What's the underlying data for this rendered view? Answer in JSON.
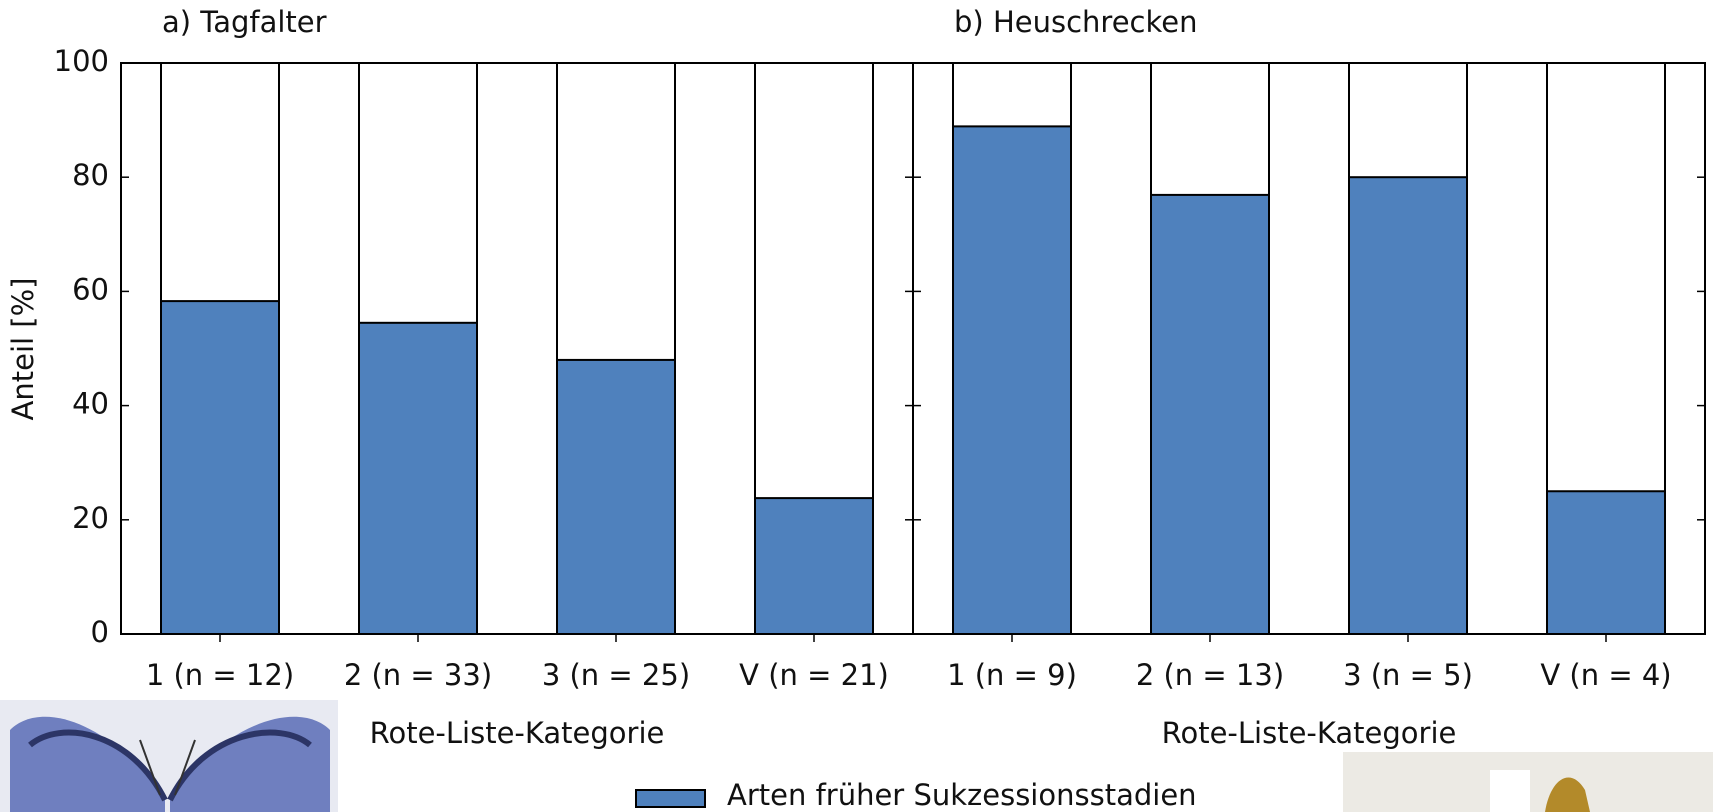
{
  "chart_data": [
    {
      "type": "bar",
      "title": "a) Tagfalter",
      "y_label": "Anteil [%]",
      "x_label": "Rote-Liste-Kategorie",
      "categories": [
        "1 (n = 12)",
        "2 (n = 33)",
        "3 (n = 25)",
        "V (n = 21)"
      ],
      "series": [
        {
          "name": "Arten früher Sukzessionsstadien",
          "color": "#4f81bd",
          "values": [
            58.3,
            54.5,
            48,
            23.8
          ]
        }
      ],
      "ylim": [
        0,
        100
      ],
      "yticks": [
        0,
        20,
        40,
        60,
        80,
        100
      ]
    },
    {
      "type": "bar",
      "title": "b) Heuschrecken",
      "x_label": "Rote-Liste-Kategorie",
      "categories": [
        "1 (n = 9)",
        "2 (n = 13)",
        "3 (n = 5)",
        "V (n = 4)"
      ],
      "series": [
        {
          "color": "#4f81bd",
          "values": [
            88.9,
            76.9,
            80,
            25
          ]
        }
      ],
      "ylim": [
        0,
        100
      ]
    }
  ]
}
